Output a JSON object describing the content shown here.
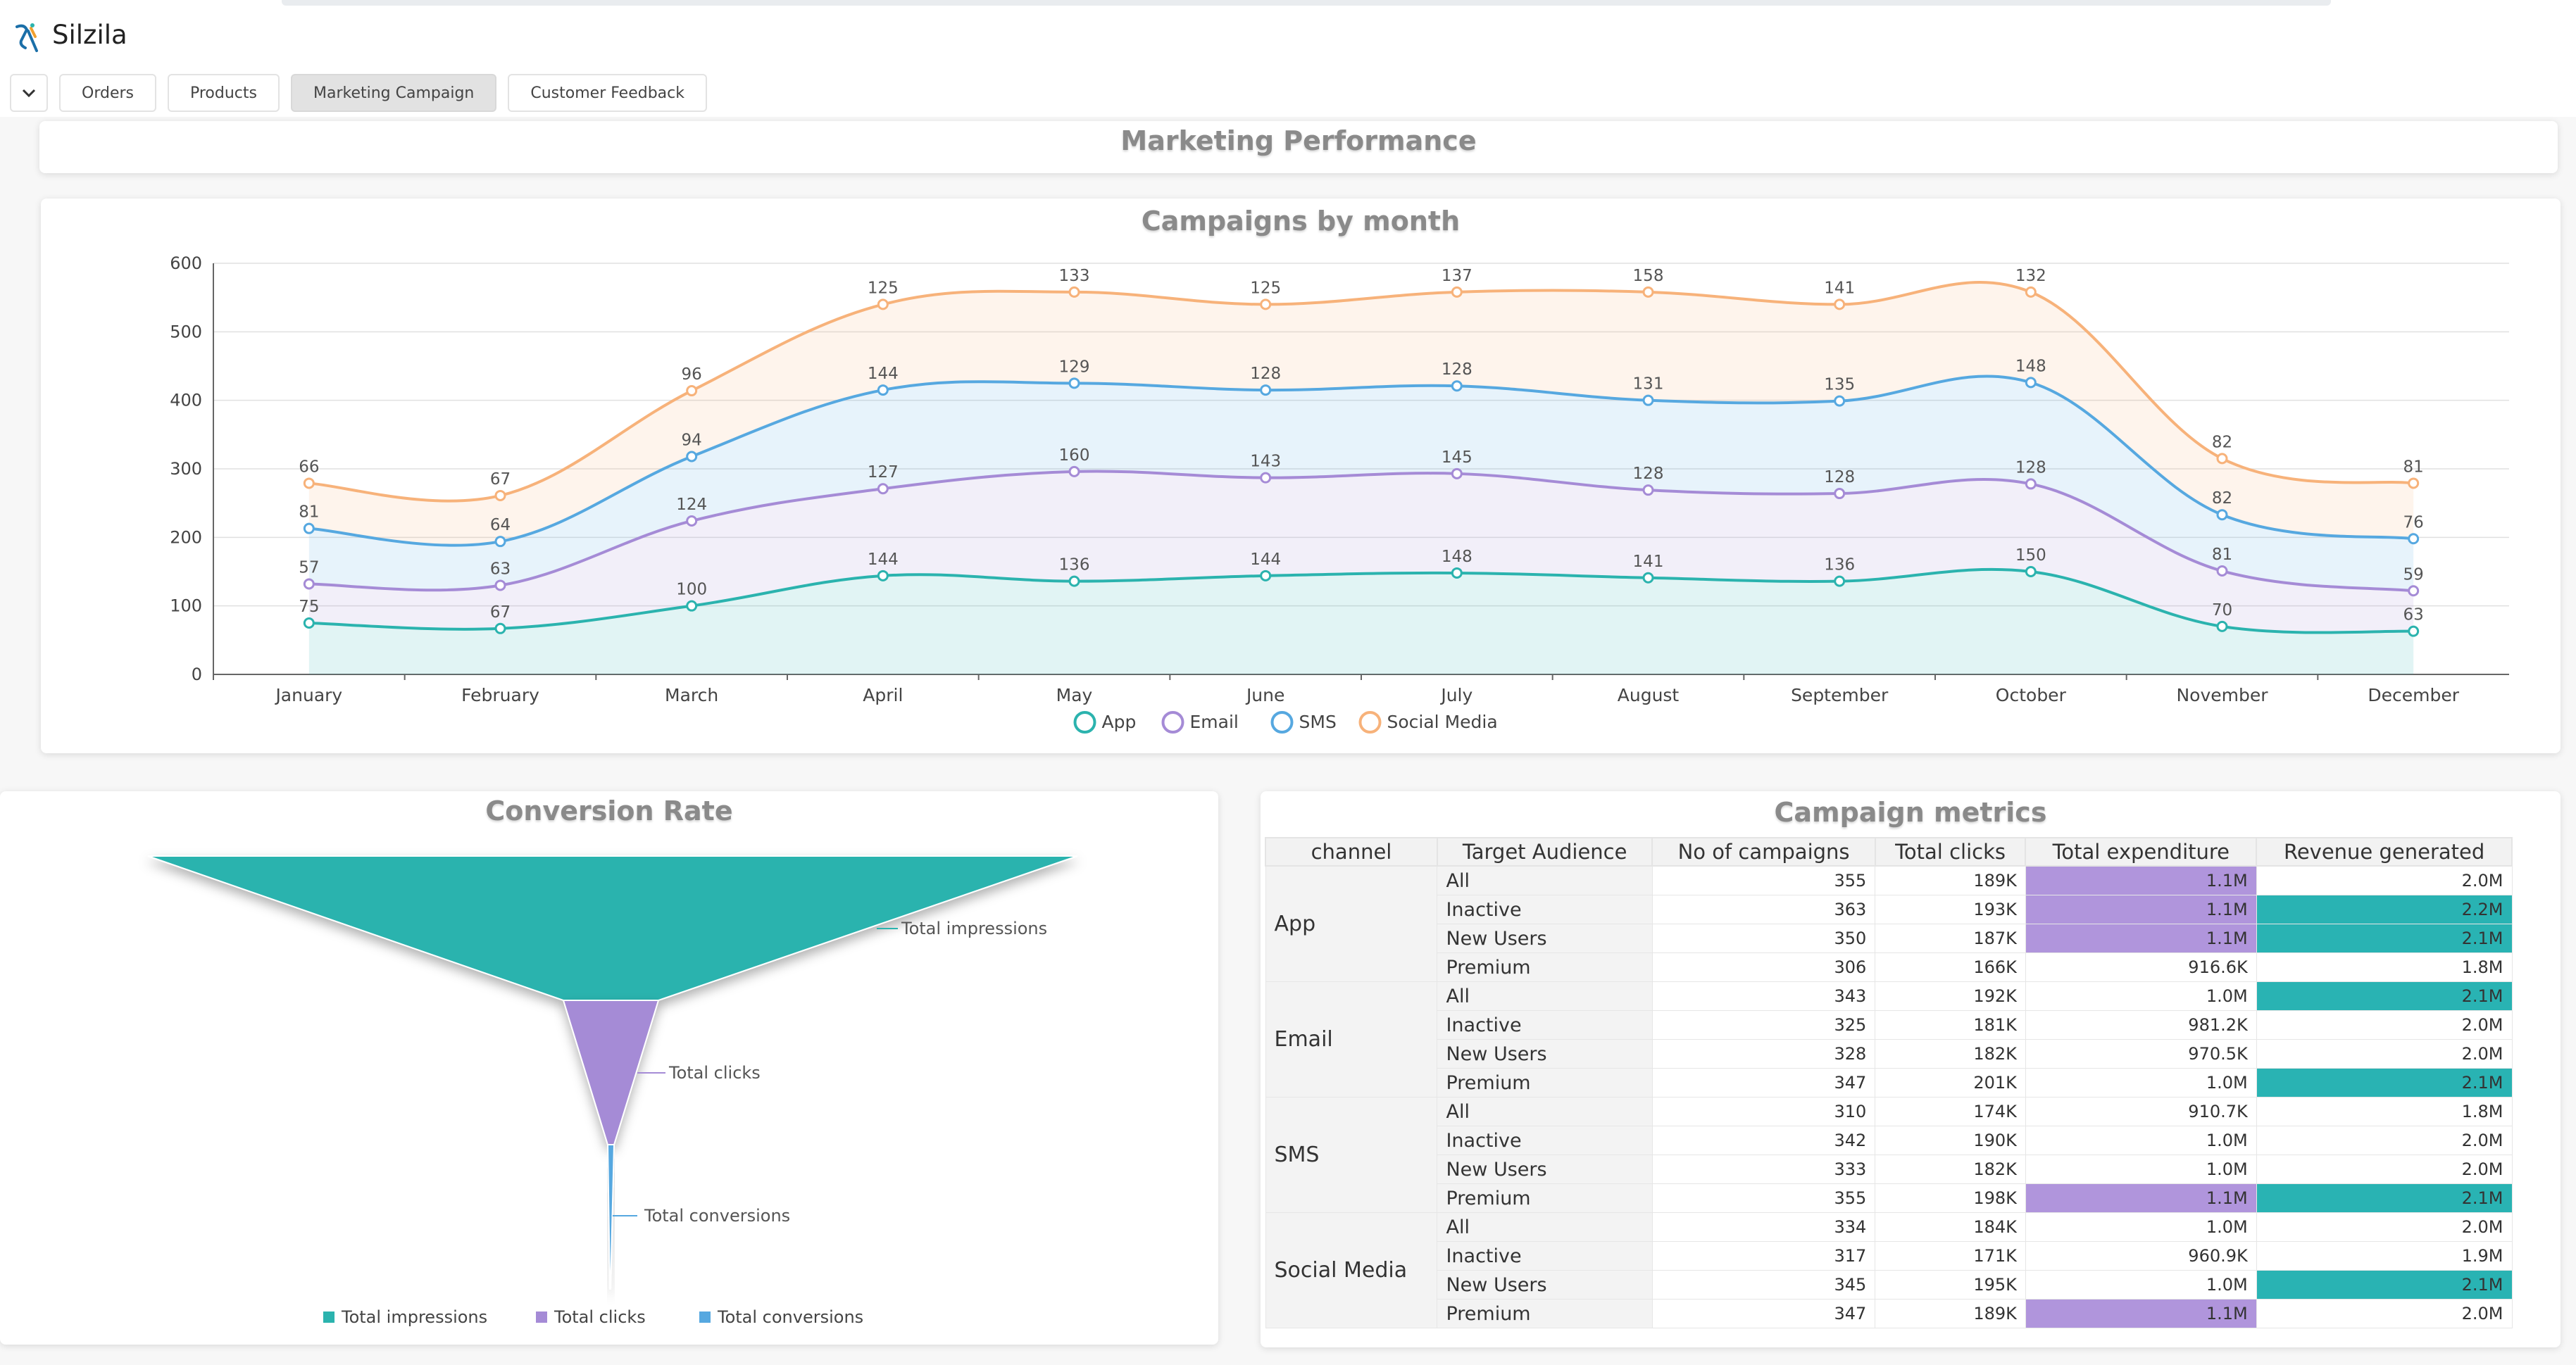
{
  "app": {
    "title": "Silzila"
  },
  "tabs": [
    {
      "label": "Orders",
      "active": false
    },
    {
      "label": "Products",
      "active": false
    },
    {
      "label": "Marketing Campaign",
      "active": true
    },
    {
      "label": "Customer Feedback",
      "active": false
    }
  ],
  "dashboard": {
    "title": "Marketing Performance"
  },
  "line_chart": {
    "title": "Campaigns by month",
    "chart_data": {
      "type": "area",
      "stacked": true,
      "categories": [
        "January",
        "February",
        "March",
        "April",
        "May",
        "June",
        "July",
        "August",
        "September",
        "October",
        "November",
        "December"
      ],
      "ylim": [
        0,
        600
      ],
      "yticks": [
        "0",
        "100",
        "200",
        "300",
        "400",
        "500",
        "600"
      ],
      "series": [
        {
          "name": "App",
          "color": "#2bb3ae",
          "values": [
            75,
            67,
            100,
            144,
            136,
            144,
            148,
            141,
            136,
            150,
            70,
            63
          ]
        },
        {
          "name": "Email",
          "color": "#a58bd6",
          "values": [
            57,
            63,
            124,
            127,
            160,
            143,
            145,
            128,
            128,
            128,
            81,
            59
          ]
        },
        {
          "name": "SMS",
          "color": "#56a8e0",
          "values": [
            81,
            64,
            94,
            144,
            129,
            128,
            128,
            131,
            135,
            148,
            82,
            76
          ]
        },
        {
          "name": "Social Media",
          "color": "#f7b27a",
          "values": [
            66,
            67,
            96,
            125,
            133,
            125,
            137,
            158,
            141,
            132,
            82,
            81
          ]
        }
      ],
      "legend": "bottom-center"
    }
  },
  "funnel": {
    "title": "Conversion Rate",
    "chart_data": {
      "type": "funnel",
      "stages": [
        {
          "name": "Total impressions",
          "color": "#2bb3ae"
        },
        {
          "name": "Total clicks",
          "color": "#a58bd6"
        },
        {
          "name": "Total conversions",
          "color": "#56a8e0"
        }
      ],
      "legend": "bottom-center"
    }
  },
  "metrics": {
    "title": "Campaign metrics",
    "columns": [
      "channel",
      "Target Audience",
      "No of campaigns",
      "Total clicks",
      "Total expenditure",
      "Revenue generated"
    ],
    "groups": [
      {
        "channel": "App",
        "rows": [
          [
            "All",
            "355",
            "189K",
            "1.1M",
            "2.0M"
          ],
          [
            "Inactive",
            "363",
            "193K",
            "1.1M",
            "2.2M"
          ],
          [
            "New Users",
            "350",
            "187K",
            "1.1M",
            "2.1M"
          ],
          [
            "Premium",
            "306",
            "166K",
            "916.6K",
            "1.8M"
          ]
        ]
      },
      {
        "channel": "Email",
        "rows": [
          [
            "All",
            "343",
            "192K",
            "1.0M",
            "2.1M"
          ],
          [
            "Inactive",
            "325",
            "181K",
            "981.2K",
            "2.0M"
          ],
          [
            "New Users",
            "328",
            "182K",
            "970.5K",
            "2.0M"
          ],
          [
            "Premium",
            "347",
            "201K",
            "1.0M",
            "2.1M"
          ]
        ]
      },
      {
        "channel": "SMS",
        "rows": [
          [
            "All",
            "310",
            "174K",
            "910.7K",
            "1.8M"
          ],
          [
            "Inactive",
            "342",
            "190K",
            "1.0M",
            "2.0M"
          ],
          [
            "New Users",
            "333",
            "182K",
            "1.0M",
            "2.0M"
          ],
          [
            "Premium",
            "355",
            "198K",
            "1.1M",
            "2.1M"
          ]
        ]
      },
      {
        "channel": "Social Media",
        "rows": [
          [
            "All",
            "334",
            "184K",
            "1.0M",
            "2.0M"
          ],
          [
            "Inactive",
            "317",
            "171K",
            "960.9K",
            "1.9M"
          ],
          [
            "New Users",
            "345",
            "195K",
            "1.0M",
            "2.1M"
          ],
          [
            "Premium",
            "347",
            "189K",
            "1.1M",
            "2.0M"
          ]
        ]
      }
    ],
    "highlight_rules": {
      "expenditure_color": "#b095dc",
      "revenue_color": "#29b3b3"
    }
  }
}
